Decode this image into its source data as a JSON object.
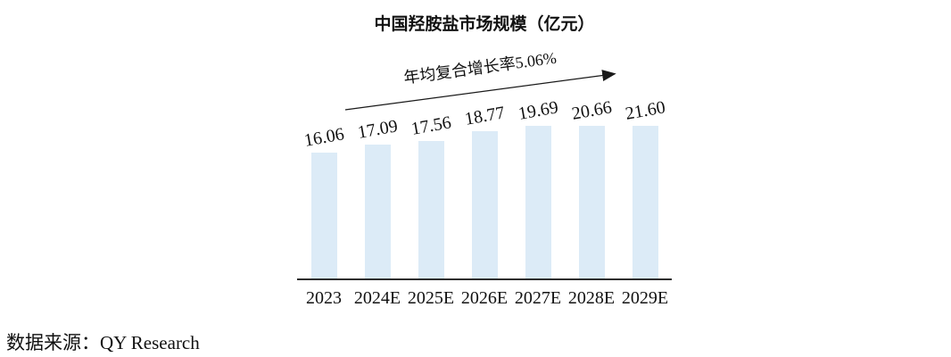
{
  "chart": {
    "title": "中国羟胺盐市场规模（亿元）",
    "cagr_annotation": "年均复合增长率5.06%"
  },
  "source": "数据来源：QY Research",
  "chart_data": {
    "type": "bar",
    "title": "中国羟胺盐市场规模（亿元）",
    "categories": [
      "2023",
      "2024E",
      "2025E",
      "2026E",
      "2027E",
      "2028E",
      "2029E"
    ],
    "values": [
      16.06,
      17.09,
      17.56,
      18.77,
      19.69,
      20.66,
      21.6
    ],
    "value_labels": [
      "16.06",
      "17.09",
      "17.56",
      "18.77",
      "19.69",
      "20.66",
      "21.60"
    ],
    "annotation": "年均复合增长率5.06%",
    "source_note": "数据来源：QY Research",
    "xlabel": "",
    "ylabel": "",
    "ylim": [
      0,
      22.6
    ],
    "grid": false,
    "legend": false,
    "bar_color": "#DCEBF7",
    "axis_color": "#2e2e2e",
    "arrow_color": "#1a1a1a",
    "text_color": "#111111"
  }
}
